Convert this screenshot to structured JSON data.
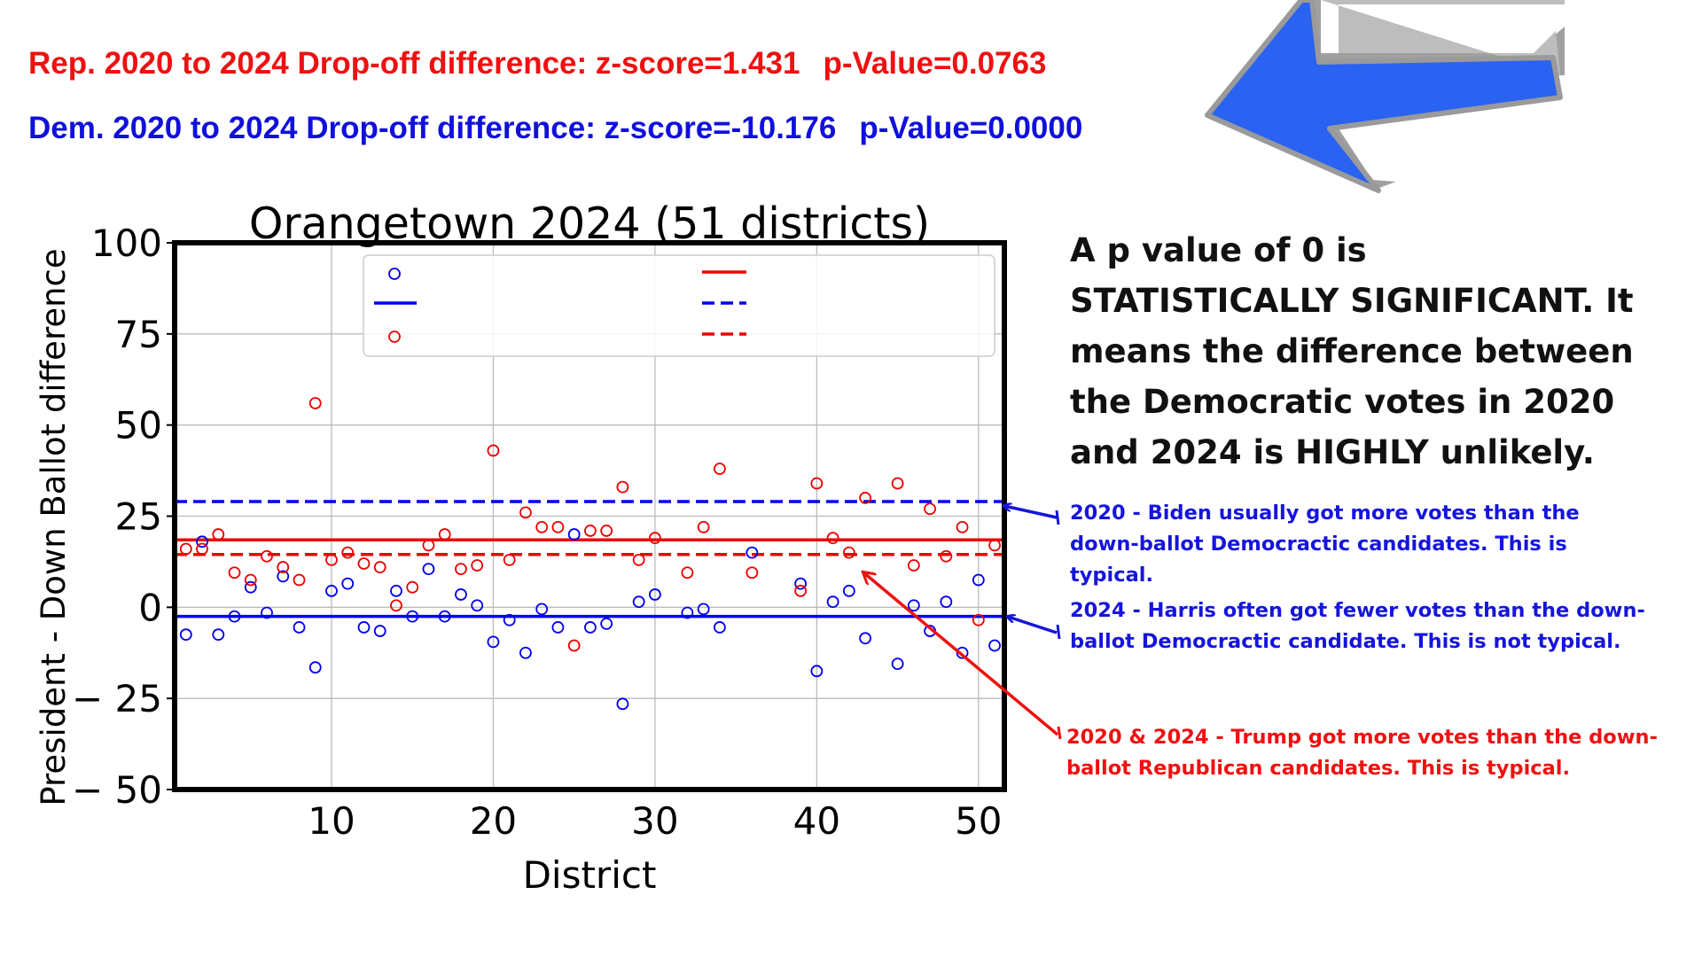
{
  "headlines": {
    "rep": {
      "label": "Rep. 2020 to 2024 Drop-off difference: z-score=1.431",
      "pvalue": "p-Value=0.0763"
    },
    "dem": {
      "label": "Dem. 2020 to 2024 Drop-off difference: z-score=-10.176",
      "pvalue": "p-Value=0.0000"
    }
  },
  "notes": {
    "significance": "A p value of 0 is STATISTICALLY SIGNIFICANT. It means the difference between the Democratic votes in 2020 and 2024 is HIGHLY unlikely.",
    "biden_2020": "2020 - Biden usually got more votes than the down-ballot Democractic candidates. This is typical.",
    "harris_2024": "2024 - Harris often got fewer votes than the down-ballot Democractic candidate. This is not typical.",
    "trump": "2020 & 2024 - Trump got more votes than the down-ballot Republican candidates. This is typical."
  },
  "colors": {
    "dem": "#0000ee",
    "rep": "#ee0000",
    "arrow": "#2a62f2",
    "arrow_border": "#a8a8a8"
  },
  "icons": {
    "pointer": "big-blue-arrow-icon"
  },
  "chart_data": {
    "type": "scatter",
    "title": "Orangetown 2024 (51 districts)",
    "xlabel": "District",
    "ylabel": "President - Down Ballot difference",
    "xlim": [
      0.3,
      51.6
    ],
    "ylim": [
      -50,
      100
    ],
    "xticks": [
      10,
      20,
      30,
      40,
      50
    ],
    "yticks": [
      -50,
      -25,
      0,
      25,
      50,
      75,
      100
    ],
    "ytick_labels": [
      "− 50",
      "− 25",
      "0",
      "25",
      "50",
      "75",
      "100"
    ],
    "grid": true,
    "legend": "top (labels not shown)",
    "series": [
      {
        "color": "#0000ee",
        "marker": "open-circle",
        "x": [
          1,
          2,
          3,
          4,
          5,
          6,
          7,
          8,
          9,
          10,
          11,
          12,
          13,
          14,
          15,
          16,
          17,
          18,
          19,
          20,
          21,
          22,
          23,
          24,
          25,
          26,
          27,
          28,
          29,
          30,
          32,
          33,
          34,
          36,
          39,
          40,
          41,
          42,
          43,
          45,
          46,
          47,
          48,
          49,
          50,
          51
        ],
        "y": [
          -7.5,
          18,
          -7.5,
          -2.5,
          5.5,
          -1.5,
          8.5,
          -5.5,
          -16.5,
          4.5,
          6.5,
          -5.5,
          -6.5,
          4.5,
          -2.5,
          10.5,
          -2.5,
          3.5,
          0.5,
          -9.5,
          -3.5,
          -12.5,
          -0.5,
          -5.5,
          20,
          -5.5,
          -4.5,
          -26.5,
          1.5,
          3.5,
          -1.5,
          -0.5,
          -5.5,
          15,
          6.5,
          -17.5,
          1.5,
          4.5,
          -8.5,
          -15.5,
          0.5,
          -6.5,
          1.5,
          -12.5,
          7.5,
          -10.5
        ]
      },
      {
        "color": "#ee0000",
        "marker": "open-circle",
        "x": [
          1,
          2,
          3,
          4,
          5,
          6,
          7,
          8,
          9,
          10,
          11,
          12,
          13,
          14,
          15,
          16,
          17,
          18,
          19,
          20,
          21,
          22,
          23,
          24,
          25,
          26,
          27,
          28,
          29,
          30,
          32,
          33,
          34,
          36,
          39,
          40,
          41,
          42,
          43,
          45,
          46,
          47,
          48,
          49,
          50,
          51
        ],
        "y": [
          16,
          16,
          20,
          9.5,
          7.5,
          14,
          11,
          7.5,
          56,
          13,
          15,
          12,
          11,
          0.5,
          5.5,
          17,
          20,
          10.5,
          11.5,
          43,
          13,
          26,
          22,
          22,
          -10.5,
          21,
          21,
          33,
          13,
          19,
          9.5,
          22,
          38,
          9.5,
          4.5,
          34,
          19,
          15,
          30,
          34,
          11.5,
          27,
          14,
          22,
          -3.5,
          17
        ]
      },
      {
        "type": "hline",
        "y": -2.5,
        "color": "#0000ee",
        "style": "solid"
      },
      {
        "type": "hline",
        "y": 29,
        "color": "#0000ee",
        "style": "dashed"
      },
      {
        "type": "hline",
        "y": 18.5,
        "color": "#ee0000",
        "style": "solid"
      },
      {
        "type": "hline",
        "y": 14.5,
        "color": "#ee0000",
        "style": "dashed"
      }
    ]
  }
}
